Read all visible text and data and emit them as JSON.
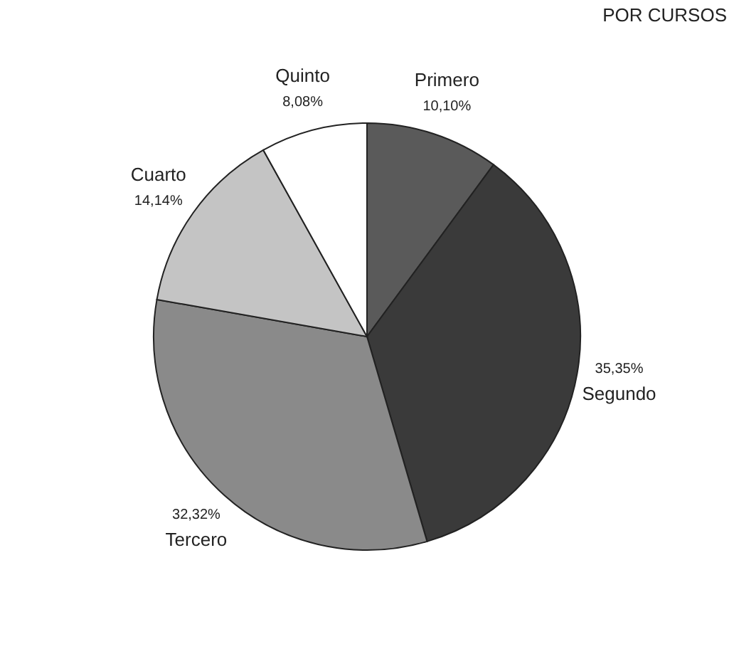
{
  "chart_data": {
    "type": "pie",
    "title": "POR CURSOS",
    "categories": [
      "Primero",
      "Segundo",
      "Tercero",
      "Cuarto",
      "Quinto"
    ],
    "values": [
      10.1,
      35.35,
      32.32,
      14.14,
      8.08
    ],
    "value_labels": [
      "10,10%",
      "35,35%",
      "32,32%",
      "14,14%",
      "8,08%"
    ],
    "colors": [
      "#5a5a5a",
      "#3a3a3a",
      "#8a8a8a",
      "#c4c4c4",
      "#ffffff"
    ]
  }
}
